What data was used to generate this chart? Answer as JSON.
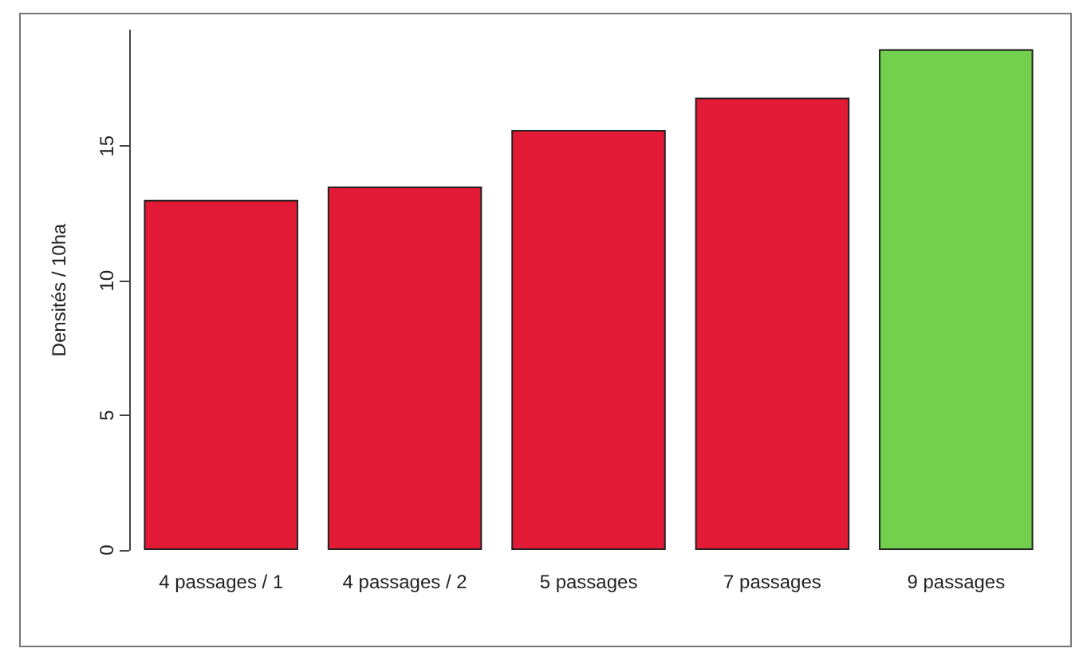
{
  "chart_data": {
    "type": "bar",
    "ylabel": "Densités / 10ha",
    "categories": [
      "4 passages / 1",
      "4 passages / 2",
      "5 passages",
      "7 passages",
      "9 passages"
    ],
    "values": [
      13.0,
      13.5,
      15.6,
      16.8,
      18.6
    ],
    "colors": [
      "#e31a35",
      "#e31a35",
      "#e31a35",
      "#e31a35",
      "#72d04c"
    ],
    "ylim": [
      0,
      19.3
    ],
    "yticks": [
      0,
      5,
      10,
      15
    ],
    "grid": false
  }
}
